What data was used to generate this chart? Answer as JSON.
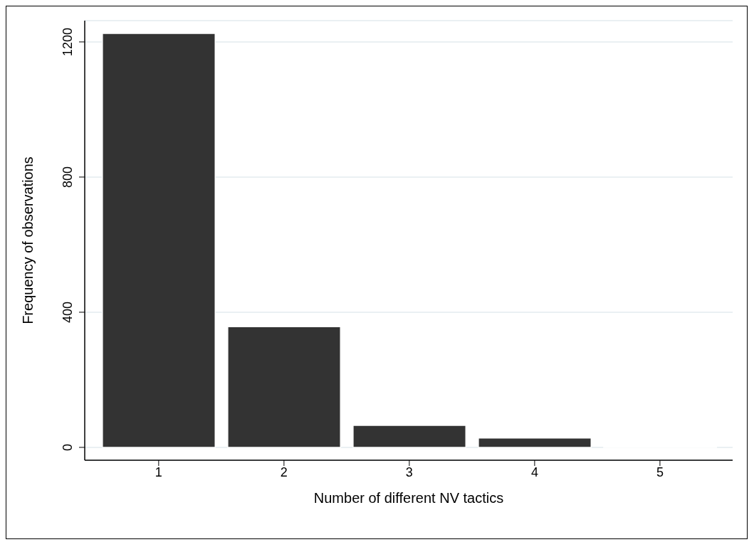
{
  "chart_data": {
    "type": "histogram",
    "xlabel": "Number of different NV tactics",
    "ylabel": "Frequency of observations",
    "bins": [
      0.5,
      1.5,
      2.5,
      3.5,
      4.5,
      5.5
    ],
    "values": [
      1225,
      357,
      65,
      28,
      1
    ],
    "color": "#333333",
    "xlim": [
      0.41,
      5.58
    ],
    "xticks": [
      1,
      2,
      3,
      4,
      5
    ],
    "ylim": [
      -38,
      1263
    ],
    "yticks": [
      0,
      400,
      800,
      1200
    ],
    "grid": "y"
  }
}
